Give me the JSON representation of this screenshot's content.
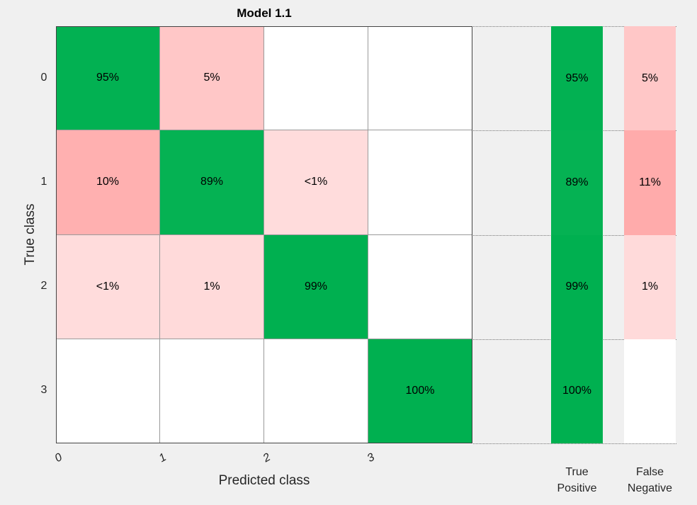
{
  "chart_data": {
    "type": "heatmap",
    "title": "Model 1.1",
    "xlabel": "Predicted class",
    "ylabel": "True class",
    "classes": [
      "0",
      "1",
      "2",
      "3"
    ],
    "matrix": [
      [
        "95%",
        "5%",
        "",
        ""
      ],
      [
        "10%",
        "89%",
        "<1%",
        ""
      ],
      [
        "<1%",
        "1%",
        "99%",
        ""
      ],
      [
        "",
        "",
        "",
        "100%"
      ]
    ],
    "matrix_values": [
      [
        95,
        5,
        0,
        0
      ],
      [
        10,
        89,
        0.5,
        0
      ],
      [
        0.5,
        1,
        99,
        0
      ],
      [
        0,
        0,
        0,
        100
      ]
    ],
    "summary_columns": [
      {
        "label_line1": "True",
        "label_line2": "Positive",
        "cells": [
          "95%",
          "89%",
          "99%",
          "100%"
        ],
        "values": [
          95,
          89,
          99,
          100
        ]
      },
      {
        "label_line1": "False",
        "label_line2": "Negative",
        "cells": [
          "5%",
          "11%",
          "1%",
          ""
        ],
        "values": [
          5,
          11,
          1,
          0
        ]
      }
    ],
    "colors": {
      "good": "#00b050",
      "bad": "#ff9999",
      "empty": "#ffffff",
      "background": "#f0f0f0"
    }
  }
}
